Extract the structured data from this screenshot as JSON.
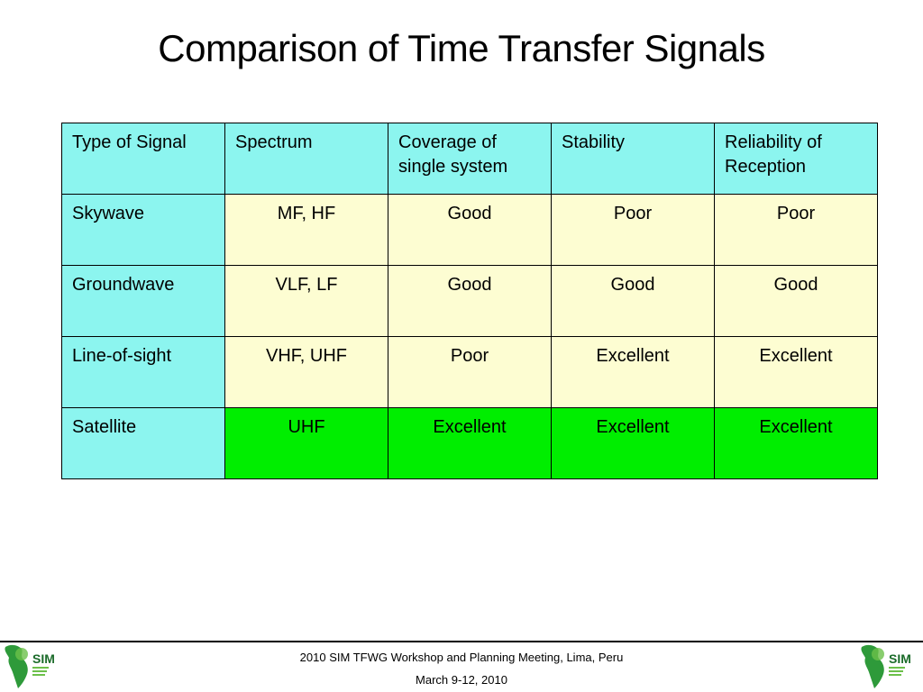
{
  "title": "Comparison of Time Transfer Signals",
  "table": {
    "headers": [
      "Type of Signal",
      "Spectrum",
      "Coverage of single system",
      "Stability",
      "Reliability of Reception"
    ],
    "rows": [
      {
        "type": "Skywave",
        "cells": [
          "MF, HF",
          "Good",
          "Poor",
          "Poor"
        ]
      },
      {
        "type": "Groundwave",
        "cells": [
          "VLF, LF",
          "Good",
          "Good",
          "Good"
        ]
      },
      {
        "type": "Line-of-sight",
        "cells": [
          "VHF, UHF",
          "Poor",
          "Excellent",
          "Excellent"
        ]
      },
      {
        "type": "Satellite",
        "cells": [
          "UHF",
          "Excellent",
          "Excellent",
          "Excellent"
        ]
      }
    ]
  },
  "footer": {
    "line1": "2010 SIM TFWG Workshop and Planning Meeting, Lima, Peru",
    "line2": "March 9-12, 2010",
    "logo_text": "SIM"
  },
  "colors": {
    "header_bg": "#8cf5ef",
    "cell_bg": "#fdfdd2",
    "satellite_bg": "#00ee00",
    "logo_green": "#2e9a3a"
  }
}
